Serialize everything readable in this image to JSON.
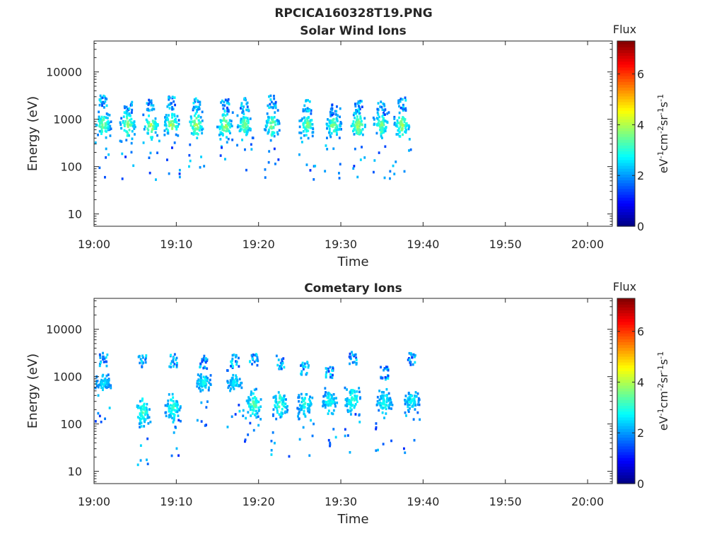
{
  "figure": {
    "title": "RPCICA160328T19.PNG"
  },
  "colormap": {
    "name": "jet",
    "stops": [
      "#00007f",
      "#0000ff",
      "#007fff",
      "#00ffff",
      "#7fff7f",
      "#ffff00",
      "#ff7f00",
      "#ff0000",
      "#7f0000"
    ]
  },
  "chart_data": [
    {
      "type": "heatmap",
      "title": "Solar Wind Ions",
      "xlabel": "Time",
      "ylabel": "Energy (eV)",
      "x_ticks": [
        "19:00",
        "19:10",
        "19:20",
        "19:30",
        "19:40",
        "19:50",
        "20:00"
      ],
      "x_tick_minutes": [
        0,
        10,
        20,
        30,
        40,
        50,
        60
      ],
      "xlim_minutes": [
        0,
        63
      ],
      "y_scale": "log",
      "y_ticks": [
        "10",
        "100",
        "1000",
        "10000"
      ],
      "y_tick_values": [
        10,
        100,
        1000,
        10000
      ],
      "ylim": [
        5.5,
        45000
      ],
      "grid": false,
      "colorbar": {
        "title": "Flux",
        "label": "eV-1cm-2sr-1s-1",
        "ticks": [
          "0",
          "2",
          "4",
          "6"
        ],
        "tick_values": [
          0,
          2,
          4,
          6
        ],
        "range": [
          0,
          7.3
        ]
      },
      "bursts": [
        {
          "t": 1.0,
          "e_peak": 750,
          "intensity": 3.6,
          "spread": 0.2,
          "high_e": 2300
        },
        {
          "t": 4.0,
          "e_peak": 780,
          "intensity": 3.8,
          "spread": 0.2,
          "high_e": 1700
        },
        {
          "t": 6.8,
          "e_peak": 720,
          "intensity": 3.9,
          "spread": 0.22,
          "high_e": 2000
        },
        {
          "t": 9.3,
          "e_peak": 750,
          "intensity": 3.8,
          "spread": 0.2,
          "high_e": 2200
        },
        {
          "t": 12.3,
          "e_peak": 760,
          "intensity": 3.9,
          "spread": 0.22,
          "high_e": 2100
        },
        {
          "t": 15.8,
          "e_peak": 720,
          "intensity": 3.9,
          "spread": 0.22,
          "high_e": 2000
        },
        {
          "t": 18.2,
          "e_peak": 760,
          "intensity": 3.5,
          "spread": 0.18,
          "high_e": 2000
        },
        {
          "t": 21.5,
          "e_peak": 750,
          "intensity": 3.6,
          "spread": 0.2,
          "high_e": 2300
        },
        {
          "t": 25.8,
          "e_peak": 750,
          "intensity": 3.5,
          "spread": 0.18,
          "high_e": 1900
        },
        {
          "t": 29.0,
          "e_peak": 740,
          "intensity": 3.6,
          "spread": 0.2,
          "high_e": 1600
        },
        {
          "t": 32.0,
          "e_peak": 760,
          "intensity": 3.9,
          "spread": 0.22,
          "high_e": 1800
        },
        {
          "t": 34.8,
          "e_peak": 760,
          "intensity": 3.5,
          "spread": 0.18,
          "high_e": 1700
        },
        {
          "t": 37.3,
          "e_peak": 760,
          "intensity": 3.8,
          "spread": 0.2,
          "high_e": 2100
        }
      ],
      "data_end_minutes": 39.5
    },
    {
      "type": "heatmap",
      "title": "Cometary Ions",
      "xlabel": "Time",
      "ylabel": "Energy (eV)",
      "x_ticks": [
        "19:00",
        "19:10",
        "19:20",
        "19:30",
        "19:40",
        "19:50",
        "20:00"
      ],
      "x_tick_minutes": [
        0,
        10,
        20,
        30,
        40,
        50,
        60
      ],
      "xlim_minutes": [
        0,
        63
      ],
      "y_scale": "log",
      "y_ticks": [
        "10",
        "100",
        "1000",
        "10000"
      ],
      "y_tick_values": [
        10,
        100,
        1000,
        10000
      ],
      "ylim": [
        5.5,
        45000
      ],
      "grid": false,
      "colorbar": {
        "title": "Flux",
        "label": "eV-1cm-2sr-1s-1",
        "ticks": [
          "0",
          "2",
          "4",
          "6"
        ],
        "tick_values": [
          0,
          2,
          4,
          6
        ],
        "range": [
          0,
          7.3
        ]
      },
      "bursts": [
        {
          "t": 1.0,
          "e_peak": 750,
          "intensity": 2.4,
          "spread": 0.12,
          "high_e": 2300
        },
        {
          "t": 5.8,
          "e_peak": 180,
          "intensity": 3.0,
          "spread": 0.25,
          "high_e": 2200
        },
        {
          "t": 9.5,
          "e_peak": 220,
          "intensity": 3.0,
          "spread": 0.22,
          "high_e": 2200
        },
        {
          "t": 13.2,
          "e_peak": 750,
          "intensity": 2.6,
          "spread": 0.14,
          "high_e": 2000
        },
        {
          "t": 17.0,
          "e_peak": 750,
          "intensity": 2.5,
          "spread": 0.14,
          "high_e": 2100
        },
        {
          "t": 19.3,
          "e_peak": 250,
          "intensity": 3.2,
          "spread": 0.25,
          "high_e": 2200
        },
        {
          "t": 22.5,
          "e_peak": 260,
          "intensity": 3.0,
          "spread": 0.25,
          "high_e": 2000
        },
        {
          "t": 25.5,
          "e_peak": 260,
          "intensity": 2.8,
          "spread": 0.22,
          "high_e": 1500
        },
        {
          "t": 28.5,
          "e_peak": 300,
          "intensity": 2.7,
          "spread": 0.2,
          "high_e": 1300
        },
        {
          "t": 31.3,
          "e_peak": 320,
          "intensity": 3.0,
          "spread": 0.25,
          "high_e": 2400
        },
        {
          "t": 35.2,
          "e_peak": 280,
          "intensity": 2.7,
          "spread": 0.2,
          "high_e": 1200
        },
        {
          "t": 38.5,
          "e_peak": 300,
          "intensity": 2.6,
          "spread": 0.18,
          "high_e": 2400
        }
      ],
      "data_end_minutes": 39.5
    }
  ]
}
